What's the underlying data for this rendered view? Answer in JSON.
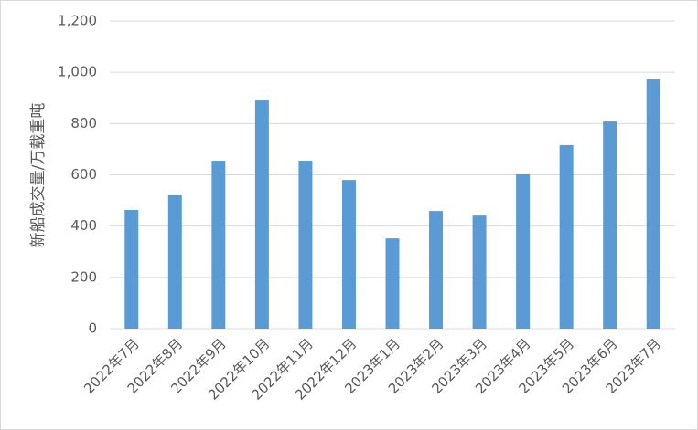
{
  "chart_data": {
    "type": "bar",
    "y_label": "新船成交量/万载重吨",
    "categories": [
      "2022年7月",
      "2022年8月",
      "2022年9月",
      "2022年10月",
      "2022年11月",
      "2022年12月",
      "2023年1月",
      "2023年2月",
      "2023年3月",
      "2023年4月",
      "2023年5月",
      "2023年6月",
      "2023年7月"
    ],
    "values": [
      463,
      520,
      655,
      890,
      655,
      580,
      352,
      459,
      441,
      602,
      716,
      808,
      972
    ],
    "color": "#5b9bd5",
    "ylim": [
      0,
      1200
    ],
    "yticks": [
      0,
      200,
      400,
      600,
      800,
      {
        "value": 1000,
        "label": "1,000"
      },
      {
        "value": 1200,
        "label": "1,200"
      }
    ],
    "grid": true
  }
}
